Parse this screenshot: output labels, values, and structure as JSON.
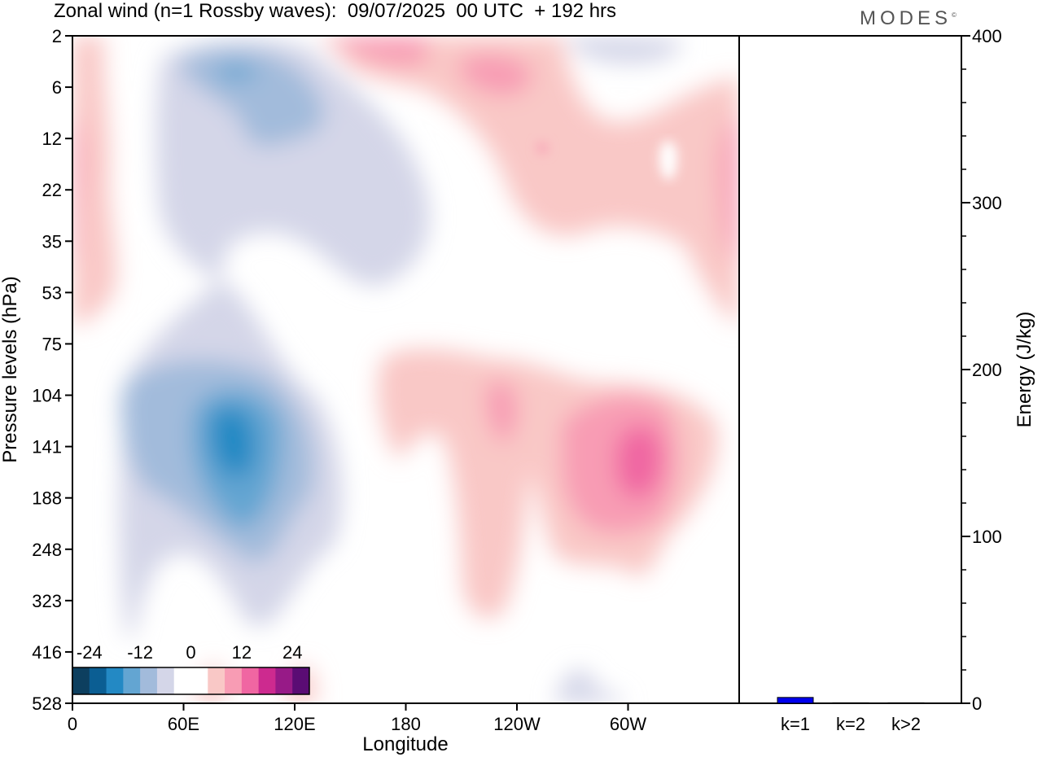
{
  "title": "Zonal wind (n=1 Rossby waves):  09/07/2025  00 UTC  + 192 hrs",
  "logo_text": "MODES",
  "logo_mark": "©",
  "colors": {
    "palette": [
      "#0d3f5f",
      "#0b5e93",
      "#2389c4",
      "#63a5d2",
      "#a2bbdb",
      "#d4d6e8",
      "#ffffff",
      "#ffffff",
      "#f9c8c6",
      "#f89cb4",
      "#f066a2",
      "#cd2a8f",
      "#971a87",
      "#5a0c74"
    ],
    "bar_fill": "#0000ee",
    "axis": "#000000"
  },
  "chart_data": [
    {
      "type": "heatmap",
      "title": "Zonal wind (n=1 Rossby waves):  09/07/2025  00 UTC  + 192 hrs",
      "xlabel": "Longitude",
      "ylabel": "Pressure levels (hPa)",
      "x_ticks": [
        "0",
        "60E",
        "120E",
        "180",
        "120W",
        "60W"
      ],
      "x_tick_values_deg": [
        0,
        60,
        120,
        180,
        240,
        300
      ],
      "xlim_deg": [
        0,
        360
      ],
      "y_ticks": [
        "2",
        "6",
        "12",
        "22",
        "35",
        "53",
        "75",
        "104",
        "141",
        "188",
        "248",
        "323",
        "416",
        "528"
      ],
      "y_axis": "pressure levels, top to bottom",
      "colorbar": {
        "labels": [
          "-24",
          "-12",
          "0",
          "12",
          "24"
        ],
        "label_values": [
          -24,
          -12,
          0,
          12,
          24
        ],
        "levels": [
          -28,
          -24,
          -20,
          -16,
          -12,
          -8,
          -4,
          0,
          4,
          8,
          12,
          16,
          20,
          24,
          28
        ],
        "placement": "bottom-left"
      },
      "features": [
        {
          "sign": "negative",
          "min": -24,
          "lon_deg": 80,
          "pressure_hPa": 141
        },
        {
          "sign": "negative",
          "min": -12,
          "lon_deg": 82,
          "pressure_hPa": 5
        },
        {
          "sign": "positive",
          "max": 20,
          "lon_deg": 302,
          "pressure_hPa": 150
        },
        {
          "sign": "positive",
          "max": 8,
          "lon_deg": 233,
          "pressure_hPa": 115
        },
        {
          "sign": "positive",
          "max": 8,
          "lon_deg": 240,
          "pressure_hPa": 5
        }
      ]
    },
    {
      "type": "bar",
      "categories": [
        "k=1",
        "k=2",
        "k>2"
      ],
      "values": [
        3.5,
        0.3,
        0.3
      ],
      "ylabel": "Energy (J/kg)",
      "ylim": [
        0,
        400
      ],
      "y_ticks": [
        "0",
        "100",
        "200",
        "300",
        "400"
      ],
      "y_tick_values": [
        0,
        100,
        200,
        300,
        400
      ],
      "y_minor_step": 20,
      "y_axis_side": "right"
    }
  ]
}
